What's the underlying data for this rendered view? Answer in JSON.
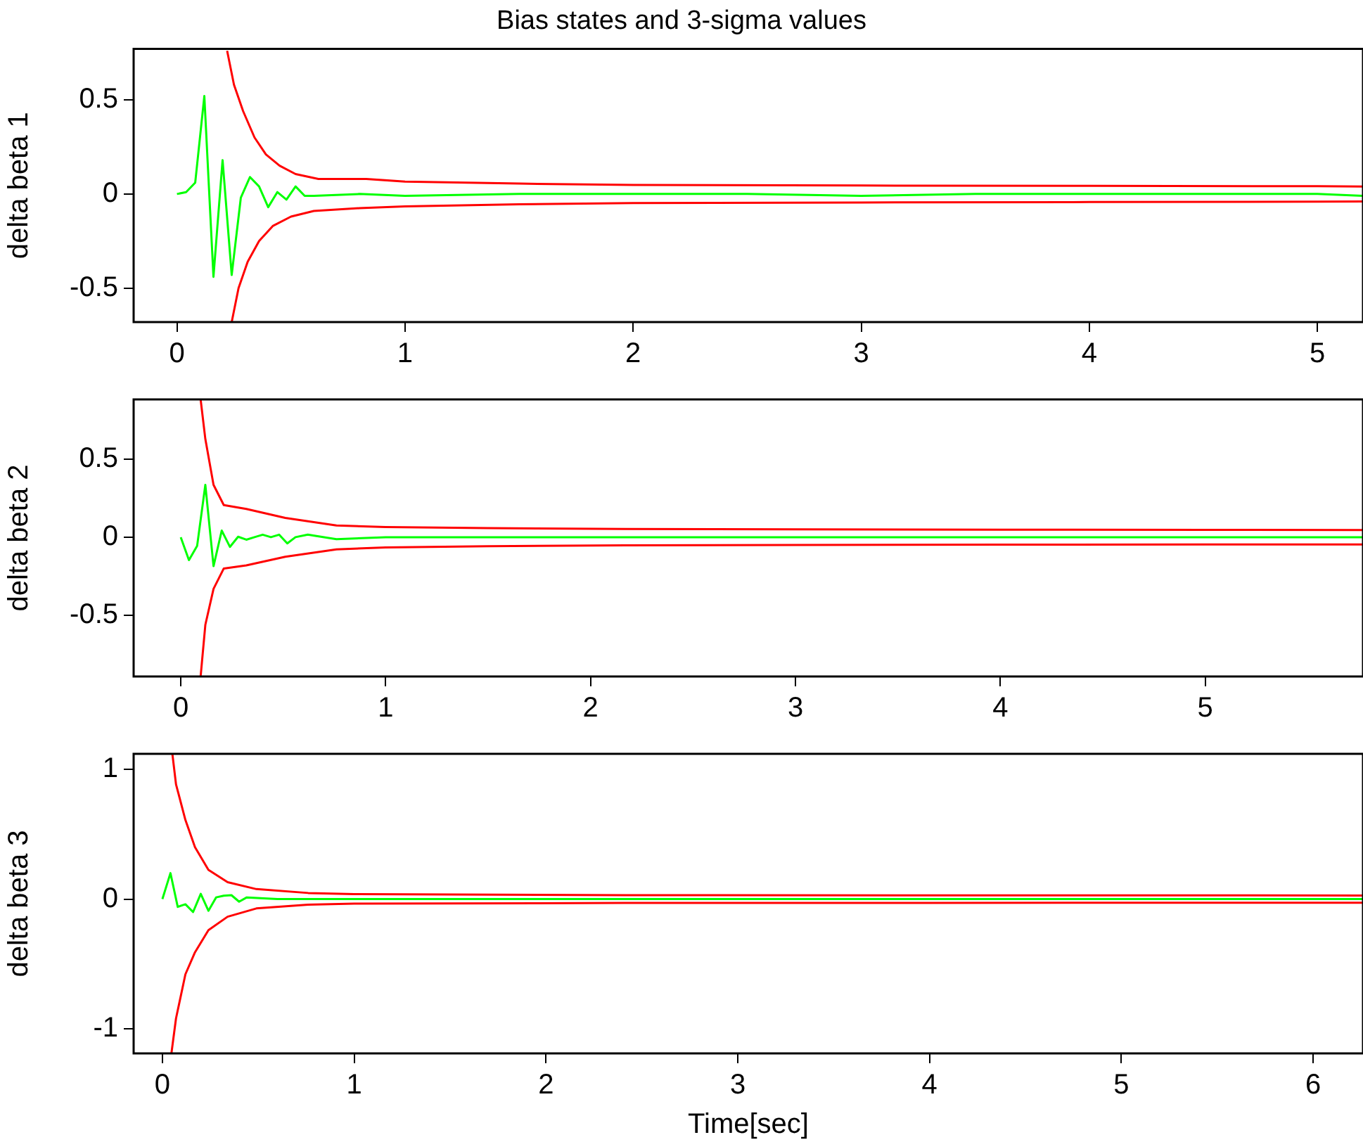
{
  "chart_data": [
    {
      "type": "line",
      "title": "Bias states and 3-sigma values",
      "ylabel": "delta beta 1",
      "xlim": [
        -0.19,
        5.2
      ],
      "xticks": [
        0,
        1,
        2,
        3,
        4,
        5
      ],
      "ylim": [
        -0.68,
        0.77
      ],
      "yticks": [
        -0.5,
        0,
        0.5
      ],
      "grid": false,
      "legend": false,
      "marker": "none",
      "line_style": "solid",
      "series": [
        {
          "color": "#ff0000",
          "x": [
            0.22,
            0.25,
            0.29,
            0.34,
            0.39,
            0.45,
            0.52,
            0.62,
            0.83,
            1.0,
            1.5,
            2,
            3,
            4,
            5,
            5.2
          ],
          "values": [
            0.76,
            0.58,
            0.44,
            0.3,
            0.21,
            0.15,
            0.106,
            0.08,
            0.08,
            0.066,
            0.055,
            0.048,
            0.045,
            0.043,
            0.041,
            0.04
          ]
        },
        {
          "color": "#ff0000",
          "x": [
            0.24,
            0.27,
            0.31,
            0.36,
            0.42,
            0.5,
            0.6,
            0.8,
            1.0,
            1.5,
            2,
            3,
            4,
            5,
            5.2
          ],
          "values": [
            -0.68,
            -0.5,
            -0.36,
            -0.25,
            -0.17,
            -0.12,
            -0.09,
            -0.075,
            -0.066,
            -0.055,
            -0.048,
            -0.045,
            -0.043,
            -0.041,
            -0.04
          ]
        },
        {
          "color": "#00ff00",
          "x": [
            0,
            0.04,
            0.08,
            0.12,
            0.16,
            0.2,
            0.24,
            0.28,
            0.32,
            0.36,
            0.4,
            0.44,
            0.48,
            0.52,
            0.56,
            0.6,
            0.8,
            1.0,
            1.5,
            2,
            2.5,
            3,
            3.5,
            4,
            4.5,
            5,
            5.2
          ],
          "values": [
            0,
            0.01,
            0.06,
            0.52,
            -0.44,
            0.18,
            -0.43,
            -0.02,
            0.09,
            0.04,
            -0.07,
            0.01,
            -0.03,
            0.04,
            -0.01,
            -0.01,
            0,
            -0.01,
            0,
            0,
            0,
            -0.01,
            0,
            0,
            0,
            0,
            -0.01
          ]
        }
      ]
    },
    {
      "type": "line",
      "ylabel": "delta beta 2",
      "xlim": [
        -0.23,
        5.77
      ],
      "xticks": [
        0,
        1,
        2,
        3,
        4,
        5
      ],
      "ylim": [
        -0.89,
        0.88
      ],
      "yticks": [
        -0.5,
        0,
        0.5
      ],
      "grid": false,
      "legend": false,
      "marker": "none",
      "line_style": "solid",
      "series": [
        {
          "color": "#ff0000",
          "x": [
            0.097,
            0.12,
            0.16,
            0.21,
            0.32,
            0.51,
            0.76,
            1.0,
            1.5,
            2.17,
            3,
            4,
            5,
            5.77
          ],
          "values": [
            0.88,
            0.627,
            0.334,
            0.205,
            0.18,
            0.123,
            0.075,
            0.065,
            0.058,
            0.052,
            0.05,
            0.048,
            0.047,
            0.046
          ]
        },
        {
          "color": "#ff0000",
          "x": [
            0.097,
            0.12,
            0.16,
            0.21,
            0.32,
            0.51,
            0.76,
            1.0,
            1.5,
            2.17,
            3,
            4,
            5,
            5.77
          ],
          "values": [
            -0.89,
            -0.56,
            -0.33,
            -0.2,
            -0.18,
            -0.125,
            -0.078,
            -0.066,
            -0.058,
            -0.052,
            -0.05,
            -0.048,
            -0.047,
            -0.046
          ]
        },
        {
          "color": "#00ff00",
          "x": [
            0,
            0.04,
            0.08,
            0.12,
            0.16,
            0.2,
            0.24,
            0.28,
            0.32,
            0.36,
            0.4,
            0.44,
            0.48,
            0.52,
            0.56,
            0.62,
            0.76,
            1.0,
            1.5,
            2,
            3,
            4,
            5,
            5.77
          ],
          "values": [
            0,
            -0.146,
            -0.055,
            0.334,
            -0.185,
            0.042,
            -0.062,
            0.003,
            -0.016,
            0,
            0.016,
            0,
            0.016,
            -0.04,
            0,
            0.016,
            -0.013,
            0,
            0,
            0,
            0,
            0,
            0,
            0
          ]
        }
      ]
    },
    {
      "type": "line",
      "ylabel": "delta beta 3",
      "xlabel": "Time[sec]",
      "xlim": [
        -0.15,
        6.26
      ],
      "xticks": [
        0,
        1,
        2,
        3,
        4,
        5,
        6
      ],
      "ylim": [
        -1.19,
        1.12
      ],
      "yticks": [
        -1,
        0,
        1
      ],
      "grid": false,
      "legend": false,
      "marker": "none",
      "line_style": "solid",
      "series": [
        {
          "color": "#ff0000",
          "x": [
            0.052,
            0.071,
            0.12,
            0.17,
            0.24,
            0.34,
            0.49,
            0.76,
            1.0,
            2.41,
            4,
            6.26
          ],
          "values": [
            1.12,
            0.885,
            0.61,
            0.4,
            0.225,
            0.13,
            0.077,
            0.047,
            0.038,
            0.03,
            0.029,
            0.028
          ]
        },
        {
          "color": "#ff0000",
          "x": [
            0.047,
            0.071,
            0.12,
            0.17,
            0.24,
            0.34,
            0.49,
            0.76,
            1.0,
            2.41,
            4,
            6.26
          ],
          "values": [
            -1.19,
            -0.92,
            -0.58,
            -0.41,
            -0.24,
            -0.136,
            -0.072,
            -0.043,
            -0.035,
            -0.03,
            -0.029,
            -0.028
          ]
        },
        {
          "color": "#00ff00",
          "x": [
            0,
            0.042,
            0.08,
            0.12,
            0.16,
            0.2,
            0.24,
            0.28,
            0.32,
            0.36,
            0.4,
            0.44,
            0.6,
            1.0,
            2,
            3,
            4,
            5,
            6.26
          ],
          "values": [
            0,
            0.2,
            -0.06,
            -0.04,
            -0.1,
            0.04,
            -0.09,
            0.013,
            0.026,
            0.03,
            -0.02,
            0.013,
            0,
            0,
            0,
            0,
            0,
            0,
            0
          ]
        }
      ]
    }
  ]
}
